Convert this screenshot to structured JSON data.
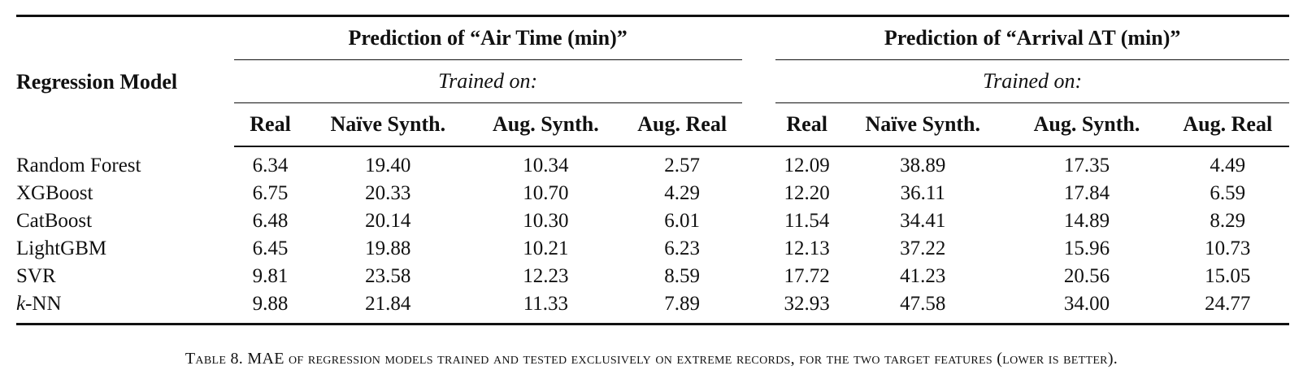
{
  "table": {
    "row_header": "Regression Model",
    "groups": [
      {
        "title": "Prediction of “Air Time (min)”",
        "subtitle": "Trained on:",
        "columns": [
          "Real",
          "Naïve Synth.",
          "Aug. Synth.",
          "Aug. Real"
        ]
      },
      {
        "title": "Prediction of “Arrival ∆T (min)”",
        "subtitle": "Trained on:",
        "columns": [
          "Real",
          "Naïve Synth.",
          "Aug. Synth.",
          "Aug. Real"
        ]
      }
    ],
    "rows": [
      {
        "model": "Random Forest",
        "values": [
          "6.34",
          "19.40",
          "10.34",
          "2.57",
          "12.09",
          "38.89",
          "17.35",
          "4.49"
        ]
      },
      {
        "model": "XGBoost",
        "values": [
          "6.75",
          "20.33",
          "10.70",
          "4.29",
          "12.20",
          "36.11",
          "17.84",
          "6.59"
        ]
      },
      {
        "model": "CatBoost",
        "values": [
          "6.48",
          "20.14",
          "10.30",
          "6.01",
          "11.54",
          "34.41",
          "14.89",
          "8.29"
        ]
      },
      {
        "model": "LightGBM",
        "values": [
          "6.45",
          "19.88",
          "10.21",
          "6.23",
          "12.13",
          "37.22",
          "15.96",
          "10.73"
        ]
      },
      {
        "model": "SVR",
        "values": [
          "9.81",
          "23.58",
          "12.23",
          "8.59",
          "17.72",
          "41.23",
          "20.56",
          "15.05"
        ]
      },
      {
        "model_prefix": "k",
        "model": "-NN",
        "values": [
          "9.88",
          "21.84",
          "11.33",
          "7.89",
          "32.93",
          "47.58",
          "34.00",
          "24.77"
        ]
      }
    ]
  },
  "caption": "Table 8. MAE of regression models trained and tested exclusively on extreme records, for the two target features (lower is better)."
}
